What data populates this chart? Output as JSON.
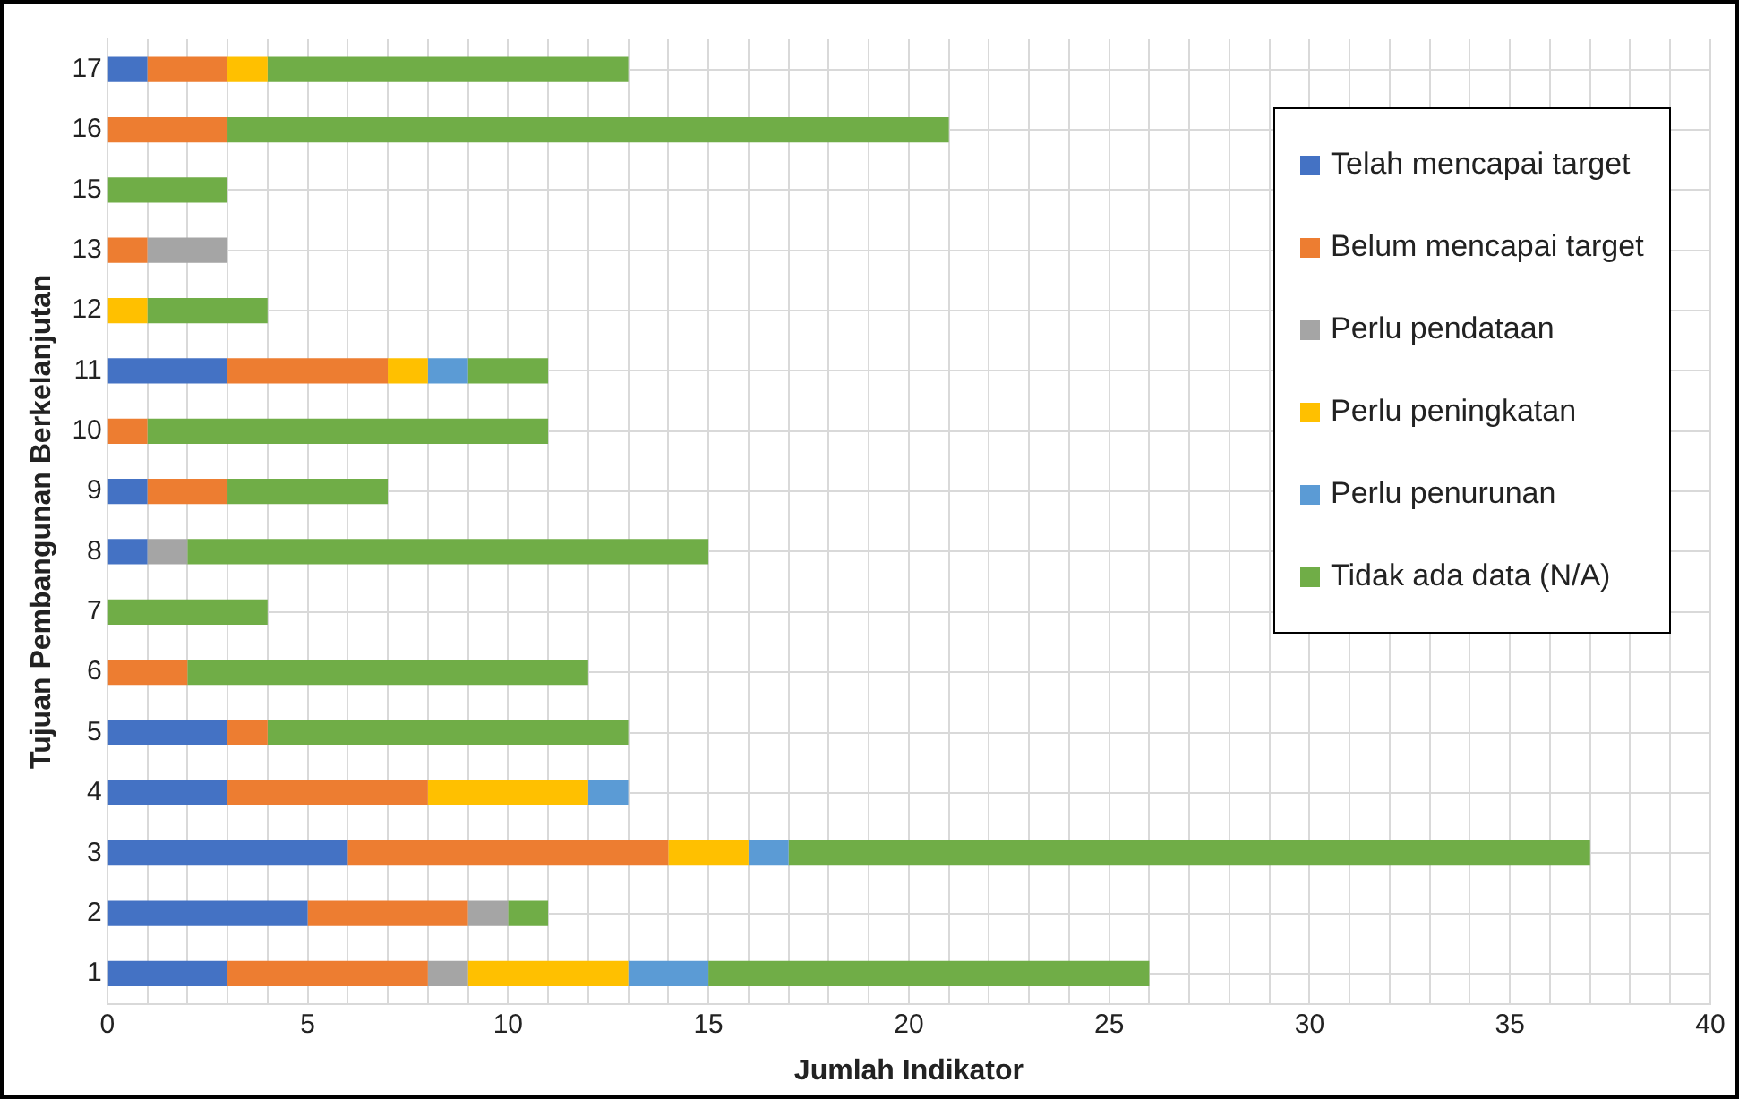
{
  "chart_data": {
    "type": "bar",
    "orientation": "horizontal",
    "stacked": true,
    "xlabel": "Jumlah Indikator",
    "ylabel": "Tujuan Pembangunan Berkelanjutan",
    "categories": [
      "17",
      "16",
      "15",
      "13",
      "12",
      "11",
      "10",
      "9",
      "8",
      "7",
      "6",
      "5",
      "4",
      "3",
      "2",
      "1"
    ],
    "series": [
      {
        "name": "Telah mencapai target",
        "color": "#4472c4",
        "values": [
          1,
          0,
          0,
          0,
          0,
          3,
          0,
          1,
          1,
          0,
          0,
          3,
          3,
          6,
          5,
          3
        ]
      },
      {
        "name": "Belum mencapai target",
        "color": "#ed7d31",
        "values": [
          2,
          3,
          0,
          1,
          0,
          4,
          1,
          2,
          0,
          0,
          2,
          1,
          5,
          8,
          4,
          5
        ]
      },
      {
        "name": "Perlu pendataan",
        "color": "#a5a5a5",
        "values": [
          0,
          0,
          0,
          2,
          0,
          0,
          0,
          0,
          1,
          0,
          0,
          0,
          0,
          0,
          1,
          1
        ]
      },
      {
        "name": "Perlu peningkatan",
        "color": "#ffc000",
        "values": [
          1,
          0,
          0,
          0,
          1,
          1,
          0,
          0,
          0,
          0,
          0,
          0,
          4,
          2,
          0,
          4
        ]
      },
      {
        "name": "Perlu penurunan",
        "color": "#5b9bd5",
        "values": [
          0,
          0,
          0,
          0,
          0,
          1,
          0,
          0,
          0,
          0,
          0,
          0,
          1,
          1,
          0,
          2
        ]
      },
      {
        "name": "Tidak ada data (N/A)",
        "color": "#70ad47",
        "values": [
          9,
          18,
          3,
          0,
          3,
          2,
          10,
          4,
          13,
          4,
          10,
          9,
          0,
          20,
          1,
          11
        ]
      }
    ],
    "xlim": [
      0,
      40
    ],
    "xticks": [
      0,
      {
        "value": 1,
        "label": null
      },
      {
        "value": 2,
        "label": null
      },
      {
        "value": 3,
        "label": null
      },
      {
        "value": 4,
        "label": null
      },
      5,
      {
        "value": 6,
        "label": null
      },
      {
        "value": 7,
        "label": null
      },
      {
        "value": 8,
        "label": null
      },
      {
        "value": 9,
        "label": null
      },
      10,
      {
        "value": 11,
        "label": null
      },
      {
        "value": 12,
        "label": null
      },
      {
        "value": 13,
        "label": null
      },
      {
        "value": 14,
        "label": null
      },
      15,
      {
        "value": 16,
        "label": null
      },
      {
        "value": 17,
        "label": null
      },
      {
        "value": 18,
        "label": null
      },
      {
        "value": 19,
        "label": null
      },
      20,
      {
        "value": 21,
        "label": null
      },
      {
        "value": 22,
        "label": null
      },
      {
        "value": 23,
        "label": null
      },
      {
        "value": 24,
        "label": null
      },
      25,
      {
        "value": 26,
        "label": null
      },
      {
        "value": 27,
        "label": null
      },
      {
        "value": 28,
        "label": null
      },
      {
        "value": 29,
        "label": null
      },
      30,
      {
        "value": 31,
        "label": null
      },
      {
        "value": 32,
        "label": null
      },
      {
        "value": 33,
        "label": null
      },
      {
        "value": 34,
        "label": null
      },
      35,
      {
        "value": 36,
        "label": null
      },
      {
        "value": 37,
        "label": null
      },
      {
        "value": 38,
        "label": null
      },
      {
        "value": 39,
        "label": null
      },
      40
    ],
    "grid": true,
    "legend": "top right"
  }
}
